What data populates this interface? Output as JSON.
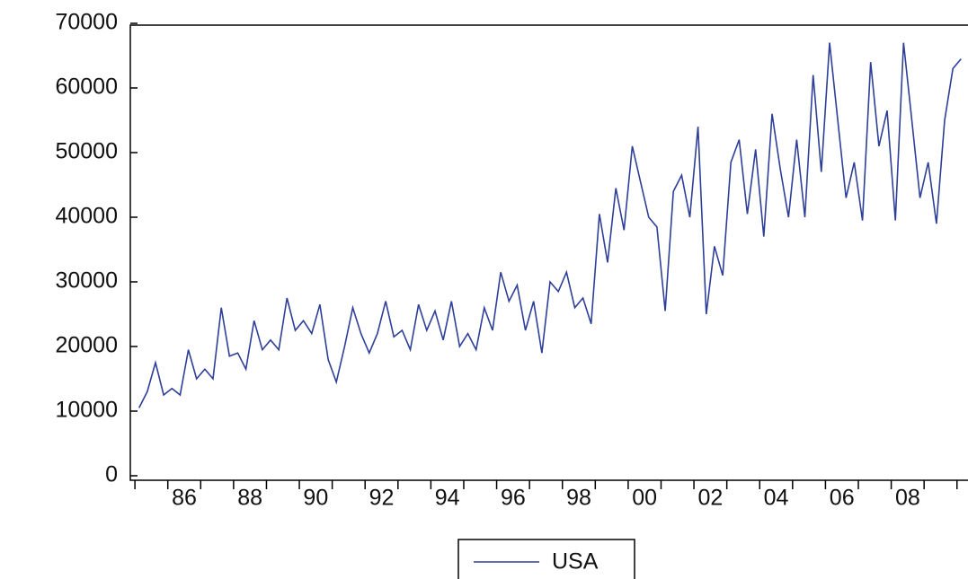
{
  "chart_data": {
    "type": "line",
    "x": [
      1985.125,
      1985.375,
      1985.625,
      1985.875,
      1986.125,
      1986.375,
      1986.625,
      1986.875,
      1987.125,
      1987.375,
      1987.625,
      1987.875,
      1988.125,
      1988.375,
      1988.625,
      1988.875,
      1989.125,
      1989.375,
      1989.625,
      1989.875,
      1990.125,
      1990.375,
      1990.625,
      1990.875,
      1991.125,
      1991.375,
      1991.625,
      1991.875,
      1992.125,
      1992.375,
      1992.625,
      1992.875,
      1993.125,
      1993.375,
      1993.625,
      1993.875,
      1994.125,
      1994.375,
      1994.625,
      1994.875,
      1995.125,
      1995.375,
      1995.625,
      1995.875,
      1996.125,
      1996.375,
      1996.625,
      1996.875,
      1997.125,
      1997.375,
      1997.625,
      1997.875,
      1998.125,
      1998.375,
      1998.625,
      1998.875,
      1999.125,
      1999.375,
      1999.625,
      1999.875,
      2000.125,
      2000.375,
      2000.625,
      2000.875,
      2001.125,
      2001.375,
      2001.625,
      2001.875,
      2002.125,
      2002.375,
      2002.625,
      2002.875,
      2003.125,
      2003.375,
      2003.625,
      2003.875,
      2004.125,
      2004.375,
      2004.625,
      2004.875,
      2005.125,
      2005.375,
      2005.625,
      2005.875,
      2006.125,
      2006.375,
      2006.625,
      2006.875,
      2007.125,
      2007.375,
      2007.625,
      2007.875,
      2008.125,
      2008.375,
      2008.625,
      2008.875,
      2009.125,
      2009.375,
      2009.625,
      2009.875,
      2010.125
    ],
    "series": [
      {
        "name": "USA",
        "color": "#2e3f98",
        "values": [
          10500,
          13000,
          17500,
          12500,
          13500,
          12500,
          19500,
          15000,
          16500,
          15000,
          26000,
          18500,
          19000,
          16500,
          24000,
          19500,
          21000,
          19500,
          27500,
          22500,
          24000,
          22000,
          26500,
          18000,
          14500,
          20000,
          26000,
          22000,
          19000,
          22000,
          27000,
          21500,
          22500,
          19500,
          26500,
          22500,
          25500,
          21000,
          27000,
          20000,
          22000,
          19500,
          26000,
          22500,
          31500,
          27000,
          29500,
          22500,
          27000,
          19000,
          30000,
          28500,
          31500,
          26000,
          27500,
          23500,
          40500,
          33000,
          44500,
          38000,
          51000,
          45500,
          40000,
          38500,
          25500,
          44000,
          46500,
          40000,
          54000,
          25000,
          35500,
          31000,
          48500,
          52000,
          40500,
          50500,
          37000,
          56000,
          47500,
          40000,
          52000,
          40000,
          62000,
          47000,
          67000,
          55000,
          43000,
          48500,
          39500,
          64000,
          51000,
          56500,
          39500,
          67000,
          55000,
          43000,
          48500,
          39000,
          55000,
          63000,
          64500
        ]
      }
    ],
    "xlim": [
      1984.86,
      2010.28
    ],
    "xticks": [
      {
        "value": 1986.5,
        "label": "86"
      },
      {
        "value": 1988.5,
        "label": "88"
      },
      {
        "value": 1990.5,
        "label": "90"
      },
      {
        "value": 1992.5,
        "label": "92"
      },
      {
        "value": 1994.5,
        "label": "94"
      },
      {
        "value": 1996.5,
        "label": "96"
      },
      {
        "value": 1998.5,
        "label": "98"
      },
      {
        "value": 2000.5,
        "label": "00"
      },
      {
        "value": 2002.5,
        "label": "02"
      },
      {
        "value": 2004.5,
        "label": "04"
      },
      {
        "value": 2006.5,
        "label": "06"
      },
      {
        "value": 2008.5,
        "label": "08"
      }
    ],
    "xminorticks": [
      1985,
      1986,
      1987,
      1988,
      1989,
      1990,
      1991,
      1992,
      1993,
      1994,
      1995,
      1996,
      1997,
      1998,
      1999,
      2000,
      2001,
      2002,
      2003,
      2004,
      2005,
      2006,
      2007,
      2008,
      2009,
      2010
    ],
    "ylim": [
      0,
      70000
    ],
    "yticks": [
      0,
      10000,
      20000,
      30000,
      40000,
      50000,
      60000,
      70000
    ],
    "legend": "bottom"
  }
}
